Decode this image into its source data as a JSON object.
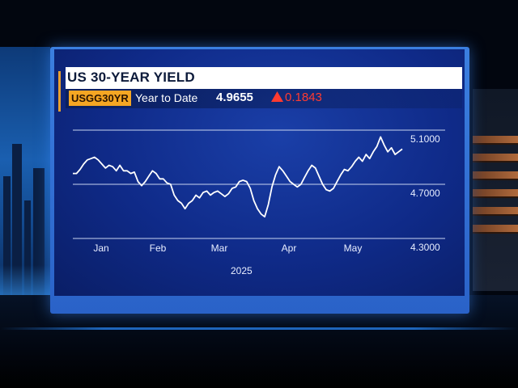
{
  "header": {
    "title": "US 30-YEAR YIELD",
    "ticker": "USGG30YR",
    "period": "Year to Date",
    "last_value": "4.9655",
    "change": "0.1843",
    "change_direction": "up",
    "change_color": "#ff3b30",
    "ticker_color": "#f5a623"
  },
  "chart_data": {
    "type": "line",
    "title": "US 30-YEAR YIELD",
    "year_label": "2025",
    "x_ticks": [
      "Jan",
      "Feb",
      "Mar",
      "Apr",
      "May"
    ],
    "y_ticks": [
      "4.3000",
      "4.7000",
      "5.1000"
    ],
    "ylim": [
      4.3,
      5.1
    ],
    "grid": "horizontal",
    "line_color": "#ffffff",
    "series": [
      {
        "values": [
          4.78,
          4.78,
          4.81,
          4.85,
          4.88,
          4.89,
          4.9,
          4.88,
          4.85,
          4.82,
          4.84,
          4.83,
          4.8,
          4.84,
          4.8,
          4.8,
          4.78,
          4.79,
          4.72,
          4.69,
          4.72,
          4.76,
          4.8,
          4.78,
          4.74,
          4.74,
          4.71,
          4.7,
          4.62,
          4.58,
          4.56,
          4.52,
          4.56,
          4.58,
          4.62,
          4.6,
          4.64,
          4.65,
          4.62,
          4.64,
          4.65,
          4.63,
          4.61,
          4.63,
          4.67,
          4.68,
          4.72,
          4.73,
          4.72,
          4.67,
          4.58,
          4.52,
          4.48,
          4.46,
          4.55,
          4.68,
          4.77,
          4.83,
          4.8,
          4.76,
          4.72,
          4.7,
          4.68,
          4.7,
          4.75,
          4.8,
          4.84,
          4.82,
          4.76,
          4.7,
          4.66,
          4.65,
          4.67,
          4.72,
          4.77,
          4.81,
          4.8,
          4.83,
          4.87,
          4.9,
          4.87,
          4.92,
          4.89,
          4.94,
          4.98,
          5.05,
          4.99,
          4.94,
          4.97,
          4.92,
          4.94,
          4.96
        ]
      }
    ]
  }
}
